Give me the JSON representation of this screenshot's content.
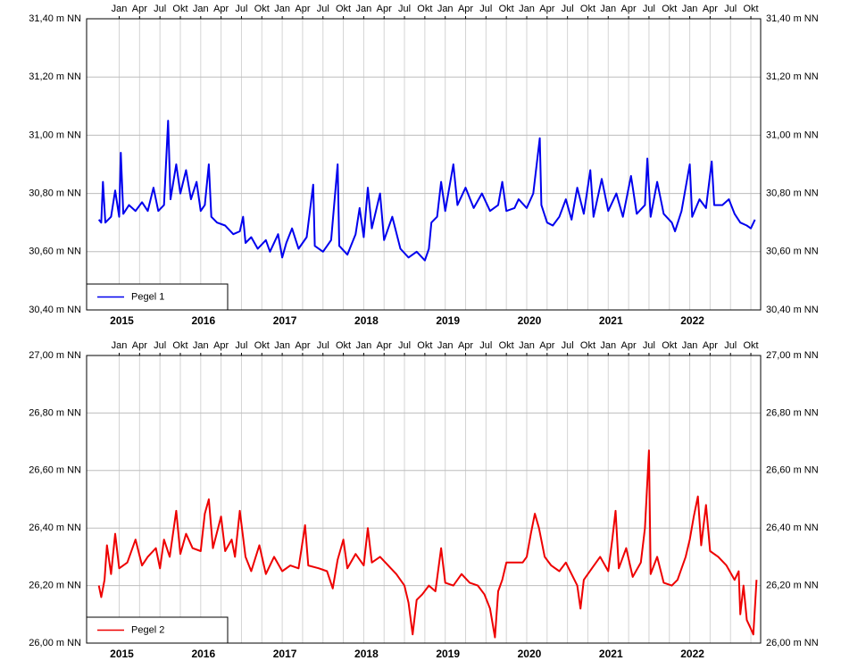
{
  "chart_data": [
    {
      "type": "line",
      "xlim": [
        2014.6,
        2022.87
      ],
      "xticks": [
        {
          "value": 2015,
          "label": "Jan"
        },
        {
          "value": 2015.25,
          "label": "Apr"
        },
        {
          "value": 2015.5,
          "label": "Jul"
        },
        {
          "value": 2015.75,
          "label": "Okt"
        },
        {
          "value": 2016,
          "label": "Jan"
        },
        {
          "value": 2016.25,
          "label": "Apr"
        },
        {
          "value": 2016.5,
          "label": "Jul"
        },
        {
          "value": 2016.75,
          "label": "Okt"
        },
        {
          "value": 2017,
          "label": "Jan"
        },
        {
          "value": 2017.25,
          "label": "Apr"
        },
        {
          "value": 2017.5,
          "label": "Jul"
        },
        {
          "value": 2017.75,
          "label": "Okt"
        },
        {
          "value": 2018,
          "label": "Jan"
        },
        {
          "value": 2018.25,
          "label": "Apr"
        },
        {
          "value": 2018.5,
          "label": "Jul"
        },
        {
          "value": 2018.75,
          "label": "Okt"
        },
        {
          "value": 2019,
          "label": "Jan"
        },
        {
          "value": 2019.25,
          "label": "Apr"
        },
        {
          "value": 2019.5,
          "label": "Jul"
        },
        {
          "value": 2019.75,
          "label": "Okt"
        },
        {
          "value": 2020,
          "label": "Jan"
        },
        {
          "value": 2020.25,
          "label": "Apr"
        },
        {
          "value": 2020.5,
          "label": "Jul"
        },
        {
          "value": 2020.75,
          "label": "Okt"
        },
        {
          "value": 2021,
          "label": "Jan"
        },
        {
          "value": 2021.25,
          "label": "Apr"
        },
        {
          "value": 2021.5,
          "label": "Jul"
        },
        {
          "value": 2021.75,
          "label": "Okt"
        },
        {
          "value": 2022,
          "label": "Jan"
        },
        {
          "value": 2022.25,
          "label": "Apr"
        },
        {
          "value": 2022.5,
          "label": "Jul"
        },
        {
          "value": 2022.75,
          "label": "Okt"
        }
      ],
      "year_labels": [
        2015,
        2016,
        2017,
        2018,
        2019,
        2020,
        2021,
        2022
      ],
      "ylim": [
        30.4,
        31.4
      ],
      "yticks": [
        {
          "value": 30.4,
          "label": "30,40 m NN"
        },
        {
          "value": 30.6,
          "label": "30,60 m NN"
        },
        {
          "value": 30.8,
          "label": "30,80 m NN"
        },
        {
          "value": 31.0,
          "label": "31,00 m NN"
        },
        {
          "value": 31.2,
          "label": "31,20 m NN"
        },
        {
          "value": 31.4,
          "label": "31,40 m NN"
        }
      ],
      "grid": true,
      "legend": "lower left",
      "x": [
        2014.75,
        2014.78,
        2014.8,
        2014.83,
        2014.9,
        2014.95,
        2015.0,
        2015.02,
        2015.05,
        2015.12,
        2015.2,
        2015.28,
        2015.35,
        2015.42,
        2015.48,
        2015.55,
        2015.6,
        2015.63,
        2015.7,
        2015.75,
        2015.82,
        2015.88,
        2015.95,
        2016.0,
        2016.05,
        2016.1,
        2016.13,
        2016.2,
        2016.3,
        2016.4,
        2016.48,
        2016.52,
        2016.55,
        2016.62,
        2016.7,
        2016.8,
        2016.85,
        2016.95,
        2017.0,
        2017.05,
        2017.12,
        2017.2,
        2017.3,
        2017.38,
        2017.4,
        2017.5,
        2017.6,
        2017.68,
        2017.7,
        2017.8,
        2017.9,
        2017.95,
        2018.0,
        2018.05,
        2018.1,
        2018.2,
        2018.25,
        2018.35,
        2018.45,
        2018.55,
        2018.65,
        2018.75,
        2018.8,
        2018.83,
        2018.9,
        2018.95,
        2019.0,
        2019.1,
        2019.15,
        2019.25,
        2019.35,
        2019.45,
        2019.55,
        2019.65,
        2019.7,
        2019.75,
        2019.85,
        2019.9,
        2020.0,
        2020.08,
        2020.16,
        2020.18,
        2020.25,
        2020.32,
        2020.4,
        2020.48,
        2020.55,
        2020.62,
        2020.7,
        2020.78,
        2020.82,
        2020.92,
        2021.0,
        2021.1,
        2021.18,
        2021.28,
        2021.35,
        2021.45,
        2021.48,
        2021.52,
        2021.6,
        2021.68,
        2021.78,
        2021.82,
        2021.9,
        2022.0,
        2022.03,
        2022.12,
        2022.2,
        2022.27,
        2022.3,
        2022.4,
        2022.48,
        2022.55,
        2022.62,
        2022.7,
        2022.75,
        2022.8
      ],
      "series": [
        {
          "name": "Pegel 1",
          "color": "#0000ee",
          "values": [
            30.71,
            30.7,
            30.84,
            30.7,
            30.72,
            30.81,
            30.72,
            30.94,
            30.73,
            30.76,
            30.74,
            30.77,
            30.74,
            30.82,
            30.74,
            30.76,
            31.05,
            30.78,
            30.9,
            30.8,
            30.88,
            30.78,
            30.84,
            30.74,
            30.76,
            30.9,
            30.72,
            30.7,
            30.69,
            30.66,
            30.67,
            30.72,
            30.63,
            30.65,
            30.61,
            30.64,
            30.6,
            30.66,
            30.58,
            30.63,
            30.68,
            30.61,
            30.65,
            30.83,
            30.62,
            30.6,
            30.64,
            30.9,
            30.62,
            30.59,
            30.66,
            30.75,
            30.65,
            30.82,
            30.68,
            30.8,
            30.64,
            30.72,
            30.61,
            30.58,
            30.6,
            30.57,
            30.61,
            30.7,
            30.72,
            30.84,
            30.74,
            30.9,
            30.76,
            30.82,
            30.75,
            30.8,
            30.74,
            30.76,
            30.84,
            30.74,
            30.75,
            30.78,
            30.75,
            30.8,
            30.99,
            30.76,
            30.7,
            30.69,
            30.72,
            30.78,
            30.71,
            30.82,
            30.73,
            30.88,
            30.72,
            30.85,
            30.74,
            30.8,
            30.72,
            30.86,
            30.73,
            30.76,
            30.92,
            30.72,
            30.84,
            30.73,
            30.7,
            30.67,
            30.74,
            30.9,
            30.72,
            30.78,
            30.75,
            30.91,
            30.76,
            30.76,
            30.78,
            30.73,
            30.7,
            30.69,
            30.68,
            30.71
          ]
        }
      ]
    },
    {
      "type": "line",
      "xlim": [
        2014.6,
        2022.87
      ],
      "xticks": [
        {
          "value": 2015,
          "label": "Jan"
        },
        {
          "value": 2015.25,
          "label": "Apr"
        },
        {
          "value": 2015.5,
          "label": "Jul"
        },
        {
          "value": 2015.75,
          "label": "Okt"
        },
        {
          "value": 2016,
          "label": "Jan"
        },
        {
          "value": 2016.25,
          "label": "Apr"
        },
        {
          "value": 2016.5,
          "label": "Jul"
        },
        {
          "value": 2016.75,
          "label": "Okt"
        },
        {
          "value": 2017,
          "label": "Jan"
        },
        {
          "value": 2017.25,
          "label": "Apr"
        },
        {
          "value": 2017.5,
          "label": "Jul"
        },
        {
          "value": 2017.75,
          "label": "Okt"
        },
        {
          "value": 2018,
          "label": "Jan"
        },
        {
          "value": 2018.25,
          "label": "Apr"
        },
        {
          "value": 2018.5,
          "label": "Jul"
        },
        {
          "value": 2018.75,
          "label": "Okt"
        },
        {
          "value": 2019,
          "label": "Jan"
        },
        {
          "value": 2019.25,
          "label": "Apr"
        },
        {
          "value": 2019.5,
          "label": "Jul"
        },
        {
          "value": 2019.75,
          "label": "Okt"
        },
        {
          "value": 2020,
          "label": "Jan"
        },
        {
          "value": 2020.25,
          "label": "Apr"
        },
        {
          "value": 2020.5,
          "label": "Jul"
        },
        {
          "value": 2020.75,
          "label": "Okt"
        },
        {
          "value": 2021,
          "label": "Jan"
        },
        {
          "value": 2021.25,
          "label": "Apr"
        },
        {
          "value": 2021.5,
          "label": "Jul"
        },
        {
          "value": 2021.75,
          "label": "Okt"
        },
        {
          "value": 2022,
          "label": "Jan"
        },
        {
          "value": 2022.25,
          "label": "Apr"
        },
        {
          "value": 2022.5,
          "label": "Jul"
        },
        {
          "value": 2022.75,
          "label": "Okt"
        }
      ],
      "year_labels": [
        2015,
        2016,
        2017,
        2018,
        2019,
        2020,
        2021,
        2022
      ],
      "ylim": [
        26.0,
        27.0
      ],
      "yticks": [
        {
          "value": 26.0,
          "label": "26,00 m NN"
        },
        {
          "value": 26.2,
          "label": "26,20 m NN"
        },
        {
          "value": 26.4,
          "label": "26,40 m NN"
        },
        {
          "value": 26.6,
          "label": "26,60 m NN"
        },
        {
          "value": 26.8,
          "label": "26,80 m NN"
        },
        {
          "value": 27.0,
          "label": "27,00 m NN"
        }
      ],
      "grid": true,
      "legend": "lower left",
      "x": [
        2014.75,
        2014.78,
        2014.82,
        2014.85,
        2014.9,
        2014.95,
        2015.0,
        2015.1,
        2015.2,
        2015.28,
        2015.35,
        2015.45,
        2015.5,
        2015.55,
        2015.62,
        2015.7,
        2015.75,
        2015.82,
        2015.9,
        2016.0,
        2016.05,
        2016.1,
        2016.15,
        2016.25,
        2016.3,
        2016.38,
        2016.42,
        2016.48,
        2016.55,
        2016.62,
        2016.72,
        2016.8,
        2016.9,
        2017.0,
        2017.1,
        2017.2,
        2017.28,
        2017.32,
        2017.45,
        2017.55,
        2017.62,
        2017.68,
        2017.75,
        2017.8,
        2017.9,
        2018.0,
        2018.05,
        2018.1,
        2018.2,
        2018.3,
        2018.4,
        2018.5,
        2018.55,
        2018.6,
        2018.65,
        2018.72,
        2018.8,
        2018.88,
        2018.95,
        2019.0,
        2019.1,
        2019.2,
        2019.3,
        2019.4,
        2019.48,
        2019.55,
        2019.61,
        2019.65,
        2019.7,
        2019.75,
        2019.95,
        2020.0,
        2020.05,
        2020.1,
        2020.15,
        2020.22,
        2020.3,
        2020.4,
        2020.48,
        2020.55,
        2020.62,
        2020.66,
        2020.7,
        2020.8,
        2020.9,
        2021.0,
        2021.05,
        2021.09,
        2021.13,
        2021.22,
        2021.3,
        2021.4,
        2021.45,
        2021.5,
        2021.52,
        2021.6,
        2021.68,
        2021.78,
        2021.85,
        2021.95,
        2022.0,
        2022.05,
        2022.1,
        2022.14,
        2022.2,
        2022.25,
        2022.35,
        2022.45,
        2022.55,
        2022.6,
        2022.62,
        2022.66,
        2022.7,
        2022.75,
        2022.78,
        2022.82
      ],
      "series": [
        {
          "name": "Pegel 2",
          "color": "#ee0000",
          "values": [
            26.2,
            26.16,
            26.22,
            26.34,
            26.24,
            26.38,
            26.26,
            26.28,
            26.36,
            26.27,
            26.3,
            26.33,
            26.26,
            26.36,
            26.3,
            26.46,
            26.31,
            26.38,
            26.33,
            26.32,
            26.45,
            26.5,
            26.33,
            26.44,
            26.32,
            26.36,
            26.3,
            26.46,
            26.3,
            26.25,
            26.34,
            26.24,
            26.3,
            26.25,
            26.27,
            26.26,
            26.41,
            26.27,
            26.26,
            26.25,
            26.19,
            26.29,
            26.36,
            26.26,
            26.31,
            26.27,
            26.4,
            26.28,
            26.3,
            26.27,
            26.24,
            26.2,
            26.14,
            26.03,
            26.15,
            26.17,
            26.2,
            26.18,
            26.33,
            26.21,
            26.2,
            26.24,
            26.21,
            26.2,
            26.17,
            26.12,
            26.02,
            26.18,
            26.22,
            26.28,
            26.28,
            26.3,
            26.38,
            26.45,
            26.4,
            26.3,
            26.27,
            26.25,
            26.28,
            26.24,
            26.2,
            26.12,
            26.22,
            26.26,
            26.3,
            26.25,
            26.36,
            26.46,
            26.26,
            26.33,
            26.23,
            26.28,
            26.4,
            26.67,
            26.24,
            26.3,
            26.21,
            26.2,
            26.22,
            26.3,
            26.36,
            26.44,
            26.51,
            26.34,
            26.48,
            26.32,
            26.3,
            26.27,
            26.22,
            26.25,
            26.1,
            26.2,
            26.08,
            26.05,
            26.03,
            26.22
          ]
        }
      ]
    }
  ]
}
